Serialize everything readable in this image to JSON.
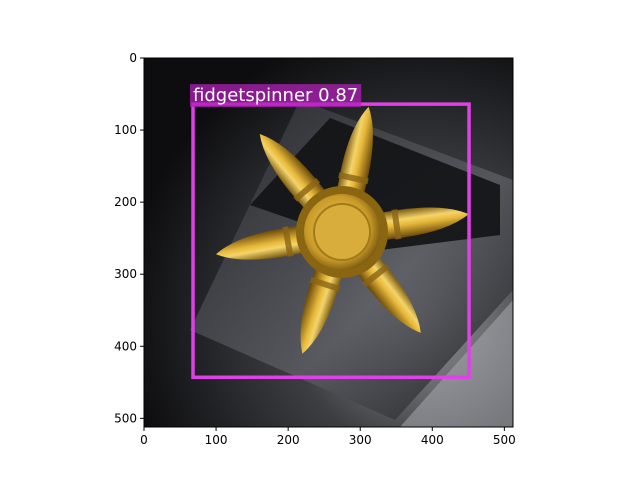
{
  "figure": {
    "image_description": "Gold six-armed bullet-shaped fidget spinner on a dark metallic surface",
    "x_axis": {
      "range": [
        0,
        512
      ],
      "ticks": [
        0,
        100,
        200,
        300,
        400,
        500
      ]
    },
    "y_axis": {
      "range": [
        0,
        512
      ],
      "inverted": true,
      "ticks": [
        0,
        100,
        200,
        300,
        400,
        500
      ]
    },
    "detection": {
      "label": "fidgetspinner 0.87",
      "class_name": "fidgetspinner",
      "score": 0.87,
      "box": {
        "x_min": 68,
        "y_min": 64,
        "x_max": 451,
        "y_max": 443
      },
      "box_color": "#e040e8",
      "label_bg_color": "#b020b8"
    }
  }
}
